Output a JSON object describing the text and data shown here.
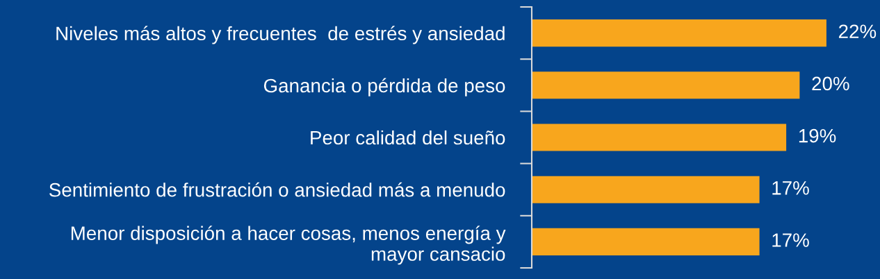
{
  "chart_data": {
    "type": "bar",
    "orientation": "horizontal",
    "categories": [
      "Niveles más altos y frecuentes  de estrés y ansiedad",
      "Ganancia o pérdida de peso",
      "Peor calidad del sueño",
      "Sentimiento de frustración o ansiedad más a menudo",
      "Menor disposición a hacer cosas, menos energía y\nmayor cansacio"
    ],
    "values": [
      22,
      20,
      19,
      17,
      17
    ],
    "value_labels": [
      "22%",
      "20%",
      "19%",
      "17%",
      "17%"
    ],
    "color": "#f8a61d",
    "xlim": [
      0,
      26
    ],
    "tick_labels": "y"
  }
}
